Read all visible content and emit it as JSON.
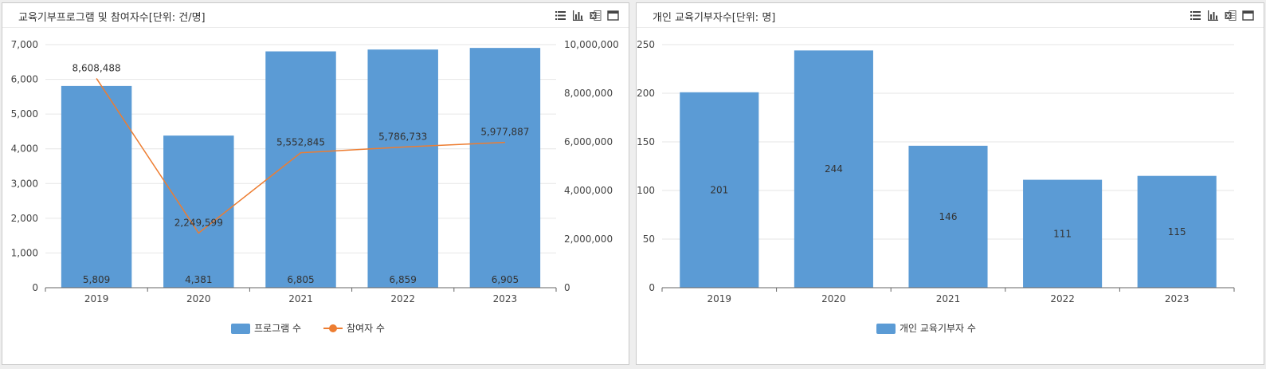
{
  "panels": [
    {
      "title": "교육기부프로그램 및 참여자수[단위: 건/명]",
      "tools": [
        "list-icon",
        "bar-chart-icon",
        "excel-icon",
        "window-icon"
      ]
    },
    {
      "title": "개인 교육기부자수[단위: 명]",
      "tools": [
        "list-icon",
        "bar-chart-icon",
        "excel-icon",
        "window-icon"
      ]
    }
  ],
  "colors": {
    "bar": "#5b9bd5",
    "line": "#ed7d31",
    "grid": "#e6e6e6",
    "axis": "#666666"
  },
  "chart_data": [
    {
      "type": "bar",
      "title": "교육기부프로그램 및 참여자수[단위: 건/명]",
      "categories": [
        "2019",
        "2020",
        "2021",
        "2022",
        "2023"
      ],
      "series": [
        {
          "name": "프로그램 수",
          "type": "bar",
          "axis": "left",
          "values": [
            5809,
            4381,
            6805,
            6859,
            6905
          ],
          "labels": [
            "5,809",
            "4,381",
            "6,805",
            "6,859",
            "6,905"
          ]
        },
        {
          "name": "참여자 수",
          "type": "line",
          "axis": "right",
          "values": [
            8608488,
            2249599,
            5552845,
            5786733,
            5977887
          ],
          "labels": [
            "8,608,488",
            "2,249,599",
            "5,552,845",
            "5,786,733",
            "5,977,887"
          ]
        }
      ],
      "y_left": {
        "min": 0,
        "max": 7000,
        "ticks": [
          0,
          1000,
          2000,
          3000,
          4000,
          5000,
          6000,
          7000
        ],
        "tick_labels": [
          "0",
          "1,000",
          "2,000",
          "3,000",
          "4,000",
          "5,000",
          "6,000",
          "7,000"
        ]
      },
      "y_right": {
        "min": 0,
        "max": 10000000,
        "ticks": [
          0,
          2000000,
          4000000,
          6000000,
          8000000,
          10000000
        ],
        "tick_labels": [
          "0",
          "2,000,000",
          "4,000,000",
          "6,000,000",
          "8,000,000",
          "10,000,000"
        ]
      },
      "legend": {
        "position": "bottom"
      },
      "grid": true
    },
    {
      "type": "bar",
      "title": "개인 교육기부자수[단위: 명]",
      "categories": [
        "2019",
        "2020",
        "2021",
        "2022",
        "2023"
      ],
      "series": [
        {
          "name": "개인 교육기부자 수",
          "type": "bar",
          "axis": "left",
          "values": [
            201,
            244,
            146,
            111,
            115
          ],
          "labels": [
            "201",
            "244",
            "146",
            "111",
            "115"
          ]
        }
      ],
      "y_left": {
        "min": 0,
        "max": 250,
        "ticks": [
          0,
          50,
          100,
          150,
          200,
          250
        ],
        "tick_labels": [
          "0",
          "50",
          "100",
          "150",
          "200",
          "250"
        ]
      },
      "legend": {
        "position": "bottom"
      },
      "grid": true
    }
  ]
}
